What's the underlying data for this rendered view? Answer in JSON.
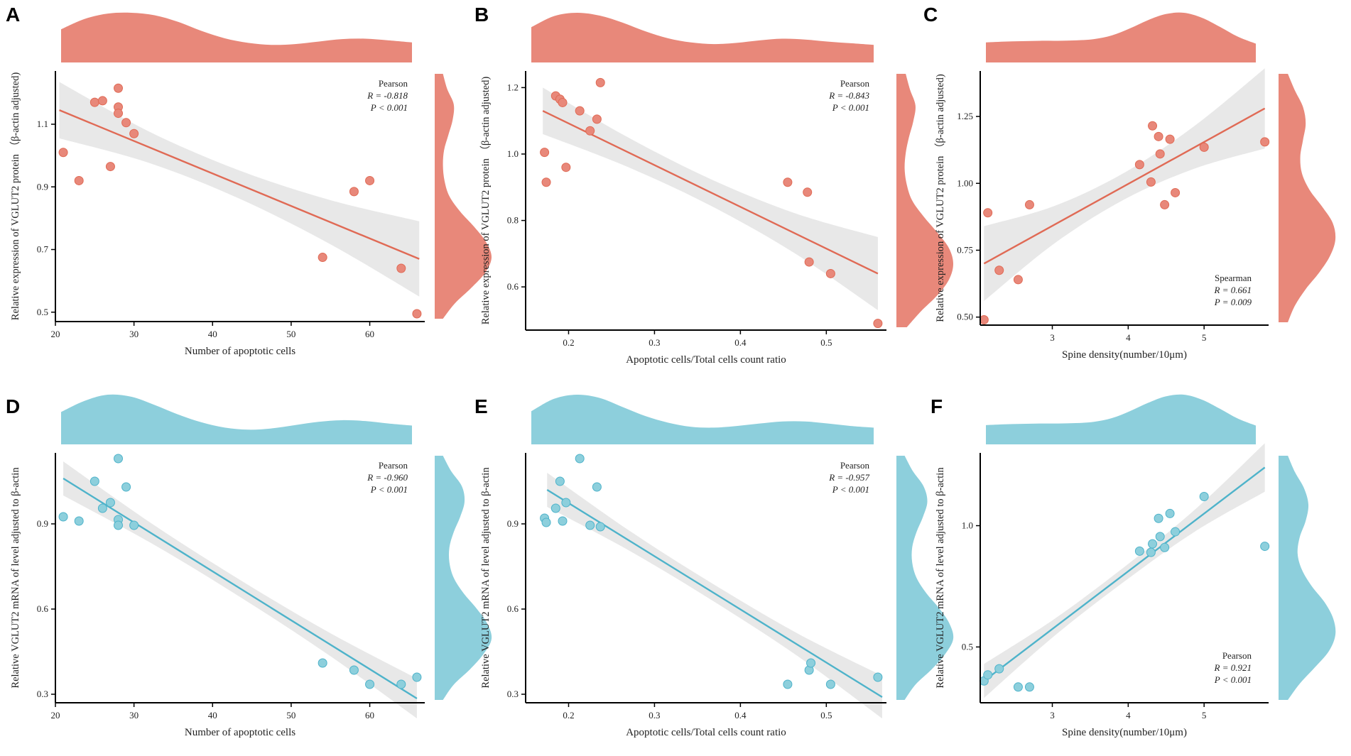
{
  "colors": {
    "red": "#E8887A",
    "redLine": "#E06A55",
    "blue": "#8DCFDC",
    "blueLine": "#4EB3CA",
    "band": "#E8E8E8"
  },
  "chart_data": [
    {
      "panel": "A",
      "type": "scatter",
      "color": "red",
      "xlabel": "Number of apoptotic cells",
      "ylabel": "Relative expression of VGLUT2 protein （β-actin adjusted)",
      "xlim": [
        20,
        67
      ],
      "ylim": [
        0.47,
        1.27
      ],
      "xticks": [
        20,
        30,
        40,
        50,
        60
      ],
      "xtick_labels": [
        "20",
        "30",
        "40",
        "50",
        "60"
      ],
      "yticks": [
        0.5,
        0.7,
        0.9,
        1.1
      ],
      "ytick_labels": [
        "0.5",
        "0.7",
        "0.9",
        "1.1"
      ],
      "stats": {
        "method": "Pearson",
        "r": "R = -0.818",
        "p": "P < 0.001",
        "corner": "top-right"
      },
      "fit": [
        [
          20.5,
          1.145
        ],
        [
          66.3,
          0.67
        ]
      ],
      "band_half": [
        0.09,
        0.05,
        0.045,
        0.07,
        0.12
      ],
      "x": [
        21,
        23,
        25,
        26,
        27,
        28,
        28,
        28,
        29,
        30,
        54,
        58,
        60,
        64,
        66
      ],
      "y": [
        1.01,
        0.92,
        1.17,
        1.175,
        0.965,
        1.215,
        1.155,
        1.135,
        1.105,
        1.07,
        0.675,
        0.885,
        0.92,
        0.64,
        0.495
      ],
      "density_top": [
        0.6,
        0.85,
        0.98,
        1.0,
        0.94,
        0.78,
        0.56,
        0.38,
        0.27,
        0.22,
        0.24,
        0.3,
        0.36,
        0.37,
        0.33,
        0.28
      ],
      "density_right": [
        0.1,
        0.18,
        0.3,
        0.28,
        0.2,
        0.12,
        0.1,
        0.13,
        0.22,
        0.42,
        0.68,
        0.9,
        1.0,
        0.88,
        0.62,
        0.32,
        0.1
      ]
    },
    {
      "panel": "B",
      "type": "scatter",
      "color": "red",
      "xlabel": "Apoptotic cells/Total cells count ratio",
      "ylabel": "Relative expression of VGLUT2 protein （β-actin adjusted)",
      "xlim": [
        0.15,
        0.57
      ],
      "ylim": [
        0.47,
        1.25
      ],
      "xticks": [
        0.2,
        0.3,
        0.4,
        0.5
      ],
      "xtick_labels": [
        "0.2",
        "0.3",
        "0.4",
        "0.5"
      ],
      "yticks": [
        0.6,
        0.8,
        1.0,
        1.2
      ],
      "ytick_labels": [
        "0.6",
        "0.8",
        "1.0",
        "1.2"
      ],
      "stats": {
        "method": "Pearson",
        "r": "R = -0.843",
        "p": "P < 0.001",
        "corner": "top-right"
      },
      "fit": [
        [
          0.17,
          1.13
        ],
        [
          0.56,
          0.64
        ]
      ],
      "band_half": [
        0.07,
        0.045,
        0.04,
        0.06,
        0.11
      ],
      "x": [
        0.172,
        0.174,
        0.185,
        0.19,
        0.193,
        0.197,
        0.213,
        0.225,
        0.233,
        0.237,
        0.455,
        0.478,
        0.48,
        0.505,
        0.56
      ],
      "y": [
        1.005,
        0.915,
        1.175,
        1.165,
        1.155,
        0.96,
        1.13,
        1.07,
        1.105,
        1.215,
        0.915,
        0.885,
        0.675,
        0.64,
        0.49
      ],
      "density_top": [
        0.65,
        0.92,
        1.0,
        0.93,
        0.76,
        0.55,
        0.38,
        0.28,
        0.24,
        0.27,
        0.33,
        0.37,
        0.35,
        0.3,
        0.26,
        0.22
      ],
      "density_right": [
        0.12,
        0.2,
        0.3,
        0.26,
        0.18,
        0.12,
        0.1,
        0.14,
        0.24,
        0.45,
        0.7,
        0.92,
        1.0,
        0.92,
        0.7,
        0.4,
        0.14
      ]
    },
    {
      "panel": "C",
      "type": "scatter",
      "color": "red",
      "xlabel": "Spine density(number/10μm)",
      "ylabel": "Relative expression of VGLUT2 protein （β-actin adjusted)",
      "xlim": [
        2.05,
        5.85
      ],
      "ylim": [
        0.47,
        1.42
      ],
      "xticks": [
        3,
        4,
        5
      ],
      "xtick_labels": [
        "3",
        "4",
        "5"
      ],
      "yticks": [
        0.5,
        0.75,
        1.0,
        1.25
      ],
      "ytick_labels": [
        "0.50",
        "0.75",
        "1.00",
        "1.25"
      ],
      "stats": {
        "method": "Spearman",
        "r": "R = 0.661",
        "p": "P = 0.009",
        "corner": "bottom-right"
      },
      "fit": [
        [
          2.1,
          0.7
        ],
        [
          5.8,
          1.28
        ]
      ],
      "band_half": [
        0.14,
        0.07,
        0.05,
        0.08,
        0.15
      ],
      "x": [
        2.1,
        2.15,
        2.3,
        2.55,
        2.7,
        4.15,
        4.3,
        4.32,
        4.4,
        4.42,
        4.48,
        4.55,
        4.62,
        5.0,
        5.8
      ],
      "y": [
        0.49,
        0.89,
        0.675,
        0.64,
        0.92,
        1.07,
        1.005,
        1.215,
        1.175,
        1.11,
        0.92,
        1.165,
        0.965,
        1.135,
        1.155
      ],
      "density_top": [
        0.28,
        0.3,
        0.31,
        0.32,
        0.32,
        0.33,
        0.36,
        0.45,
        0.62,
        0.82,
        0.97,
        1.0,
        0.88,
        0.66,
        0.42,
        0.25
      ],
      "density_right": [
        0.12,
        0.25,
        0.4,
        0.45,
        0.4,
        0.35,
        0.38,
        0.52,
        0.75,
        0.95,
        1.0,
        0.9,
        0.7,
        0.45,
        0.25,
        0.12
      ]
    },
    {
      "panel": "D",
      "type": "scatter",
      "color": "blue",
      "xlabel": "Number of apoptotic cells",
      "ylabel": "Relative VGLUT2 mRNA of level adjusted to β-actin",
      "xlim": [
        20,
        67
      ],
      "ylim": [
        0.27,
        1.15
      ],
      "xticks": [
        20,
        30,
        40,
        50,
        60
      ],
      "xtick_labels": [
        "20",
        "30",
        "40",
        "50",
        "60"
      ],
      "yticks": [
        0.3,
        0.6,
        0.9
      ],
      "ytick_labels": [
        "0.3",
        "0.6",
        "0.9"
      ],
      "stats": {
        "method": "Pearson",
        "r": "R = -0.960",
        "p": "P < 0.001",
        "corner": "top-right"
      },
      "fit": [
        [
          21,
          1.06
        ],
        [
          66,
          0.285
        ]
      ],
      "band_half": [
        0.06,
        0.035,
        0.03,
        0.04,
        0.07
      ],
      "x": [
        21,
        23,
        25,
        26,
        27,
        28,
        28,
        28,
        29,
        30,
        54,
        58,
        60,
        64,
        66
      ],
      "y": [
        0.925,
        0.91,
        1.05,
        0.955,
        0.975,
        0.915,
        0.895,
        1.13,
        1.03,
        0.895,
        0.41,
        0.385,
        0.335,
        0.335,
        0.36
      ],
      "density_top": [
        0.58,
        0.85,
        1.0,
        0.95,
        0.75,
        0.52,
        0.33,
        0.2,
        0.15,
        0.18,
        0.26,
        0.34,
        0.38,
        0.36,
        0.3,
        0.25
      ],
      "density_right": [
        0.1,
        0.25,
        0.45,
        0.5,
        0.42,
        0.3,
        0.22,
        0.22,
        0.3,
        0.48,
        0.72,
        0.92,
        1.0,
        0.85,
        0.6,
        0.3,
        0.1
      ]
    },
    {
      "panel": "E",
      "type": "scatter",
      "color": "blue",
      "xlabel": "Apoptotic cells/Total cells count ratio",
      "ylabel": "Relative VGLUT2 mRNA of level adjusted to β-actin",
      "xlim": [
        0.15,
        0.57
      ],
      "ylim": [
        0.27,
        1.15
      ],
      "xticks": [
        0.2,
        0.3,
        0.4,
        0.5
      ],
      "xtick_labels": [
        "0.2",
        "0.3",
        "0.4",
        "0.5"
      ],
      "yticks": [
        0.3,
        0.6,
        0.9
      ],
      "ytick_labels": [
        "0.3",
        "0.6",
        "0.9"
      ],
      "stats": {
        "method": "Pearson",
        "r": "R = -0.957",
        "p": "P < 0.001",
        "corner": "top-right"
      },
      "fit": [
        [
          0.175,
          1.02
        ],
        [
          0.565,
          0.29
        ]
      ],
      "band_half": [
        0.06,
        0.035,
        0.03,
        0.04,
        0.075
      ],
      "x": [
        0.172,
        0.174,
        0.185,
        0.19,
        0.193,
        0.197,
        0.213,
        0.225,
        0.233,
        0.237,
        0.455,
        0.48,
        0.482,
        0.505,
        0.56
      ],
      "y": [
        0.92,
        0.905,
        0.955,
        1.05,
        0.91,
        0.975,
        1.13,
        0.895,
        1.03,
        0.89,
        0.335,
        0.385,
        0.41,
        0.335,
        0.36
      ],
      "density_top": [
        0.6,
        0.9,
        1.0,
        0.92,
        0.7,
        0.48,
        0.32,
        0.22,
        0.2,
        0.24,
        0.3,
        0.35,
        0.35,
        0.3,
        0.24,
        0.2
      ],
      "density_right": [
        0.1,
        0.25,
        0.45,
        0.52,
        0.44,
        0.32,
        0.24,
        0.24,
        0.32,
        0.5,
        0.74,
        0.93,
        1.0,
        0.85,
        0.6,
        0.3,
        0.1
      ]
    },
    {
      "panel": "F",
      "type": "scatter",
      "color": "blue",
      "xlabel": "Spine density(number/10μm)",
      "ylabel": "Relative VGLUT2 mRNA of level adjusted to β-actin",
      "xlim": [
        2.05,
        5.85
      ],
      "ylim": [
        0.27,
        1.3
      ],
      "xticks": [
        3,
        4,
        5
      ],
      "xtick_labels": [
        "3",
        "4",
        "5"
      ],
      "yticks": [
        0.5,
        1.0
      ],
      "ytick_labels": [
        "0.5",
        "1.0"
      ],
      "stats": {
        "method": "Pearson",
        "r": "R = 0.921",
        "p": "P < 0.001",
        "corner": "bottom-right"
      },
      "fit": [
        [
          2.1,
          0.36
        ],
        [
          5.8,
          1.24
        ]
      ],
      "band_half": [
        0.07,
        0.035,
        0.03,
        0.045,
        0.1
      ],
      "x": [
        2.1,
        2.15,
        2.3,
        2.55,
        2.7,
        4.15,
        4.3,
        4.32,
        4.4,
        4.42,
        4.48,
        4.55,
        4.62,
        5.0,
        5.8
      ],
      "y": [
        0.36,
        0.385,
        0.41,
        0.335,
        0.335,
        0.895,
        0.89,
        0.925,
        1.03,
        0.955,
        0.91,
        1.05,
        0.975,
        1.12,
        0.915
      ],
      "density_top": [
        0.26,
        0.28,
        0.29,
        0.3,
        0.3,
        0.31,
        0.34,
        0.43,
        0.6,
        0.8,
        0.96,
        1.0,
        0.88,
        0.66,
        0.42,
        0.25
      ],
      "density_right": [
        0.12,
        0.25,
        0.42,
        0.5,
        0.45,
        0.34,
        0.3,
        0.38,
        0.56,
        0.8,
        0.96,
        1.0,
        0.88,
        0.62,
        0.34,
        0.12
      ]
    }
  ]
}
